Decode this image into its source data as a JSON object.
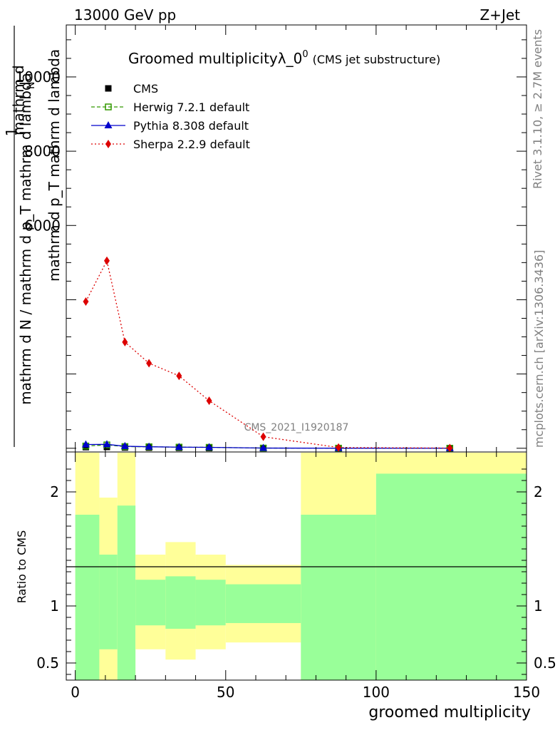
{
  "header": {
    "energy": "13000 GeV pp",
    "process": "Z+Jet",
    "rivet": "Rivet 3.1.10, ≥ 2.7M events",
    "source": "mcplots.cern.ch [arXiv:1306.3436]",
    "watermark": "CMS_2021_I1920187"
  },
  "chart_data": [
    {
      "type": "line",
      "title": "Groomed multiplicityλ_0",
      "title_sup": "0",
      "subtitle": "(CMS jet substructure)",
      "ylabel_num": "1",
      "ylabel_den": "mathrm d N / mathrm d p_T mathrm d lambda",
      "ylabel_top": "mathrm d",
      "ylabel_top2": "N",
      "ylabel_bot": "mathrm d p_T mathrm d lambda",
      "ytick_labels": [
        "10000",
        "8000",
        "6000"
      ],
      "yticks": [
        10000,
        8000,
        6000
      ],
      "ylim": [
        -100,
        11400
      ],
      "xlim": [
        -3,
        150
      ],
      "legend_position": "top-left",
      "x": [
        3.5,
        10.5,
        16.5,
        24.5,
        34.5,
        44.5,
        62.5,
        87.5,
        124.5
      ],
      "series": [
        {
          "name": "CMS",
          "color": "#000000",
          "marker": "square",
          "values": [
            30,
            35,
            20,
            15,
            10,
            5,
            2,
            1,
            0.5
          ]
        },
        {
          "name": "Herwig 7.2.1 default",
          "color": "#339900",
          "marker": "open-square",
          "dash": "5,3",
          "values": [
            60,
            90,
            45,
            40,
            30,
            25,
            5,
            2,
            1
          ]
        },
        {
          "name": "Pythia 8.308 default",
          "color": "#0000cc",
          "marker": "triangle",
          "values": [
            100,
            105,
            55,
            40,
            30,
            25,
            5,
            2,
            1
          ]
        },
        {
          "name": "Sherpa 2.2.9 default",
          "color": "#dd0000",
          "marker": "diamond",
          "dash": "2,3",
          "values": [
            3950,
            5050,
            2860,
            2290,
            1950,
            1280,
            310,
            20,
            5
          ]
        }
      ]
    },
    {
      "type": "area",
      "ylabel": "Ratio to CMS",
      "xlabel": "groomed multiplicity",
      "ylim": [
        0.35,
        2.35
      ],
      "yticks": [
        0.5,
        1,
        2
      ],
      "ytick_labels": [
        "0.5",
        "1",
        "2"
      ],
      "xticks": [
        0,
        50,
        100,
        150
      ],
      "xtick_labels": [
        "0",
        "50",
        "100",
        "150"
      ],
      "bins": [
        {
          "x0": 0,
          "x1": 8,
          "green": [
            0,
            1.8
          ],
          "yellow": [
            0,
            2.4
          ]
        },
        {
          "x0": 8,
          "x1": 14,
          "green": [
            0.62,
            1.45
          ],
          "yellow": [
            0,
            1.95
          ]
        },
        {
          "x0": 14,
          "x1": 20,
          "green": [
            0,
            1.88
          ],
          "yellow": [
            0,
            2.4
          ]
        },
        {
          "x0": 20,
          "x1": 30,
          "green": [
            0.83,
            1.23
          ],
          "yellow": [
            0.62,
            1.45
          ]
        },
        {
          "x0": 30,
          "x1": 40,
          "green": [
            0.8,
            1.26
          ],
          "yellow": [
            0.53,
            1.56
          ]
        },
        {
          "x0": 40,
          "x1": 50,
          "green": [
            0.83,
            1.23
          ],
          "yellow": [
            0.62,
            1.45
          ]
        },
        {
          "x0": 50,
          "x1": 75,
          "green": [
            0.85,
            1.19
          ],
          "yellow": [
            0.68,
            1.36
          ]
        },
        {
          "x0": 75,
          "x1": 100,
          "green": [
            0,
            1.8
          ],
          "yellow": [
            0,
            2.4
          ]
        },
        {
          "x0": 100,
          "x1": 150,
          "green": [
            0,
            2.16
          ],
          "yellow": [
            0,
            2.4
          ]
        }
      ],
      "colors": {
        "green": "#99ff99",
        "yellow": "#ffff99"
      }
    }
  ]
}
